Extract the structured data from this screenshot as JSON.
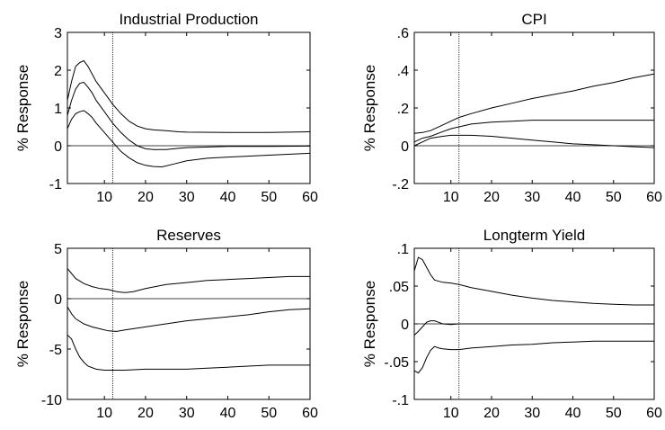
{
  "chart_data": [
    {
      "type": "line",
      "title": "Industrial Production",
      "ylabel": "% Response",
      "xlim": [
        1,
        60
      ],
      "ylim": [
        -1,
        3
      ],
      "xticks": [
        10,
        20,
        30,
        40,
        50,
        60
      ],
      "yticks": [
        -1,
        0,
        1,
        2,
        3
      ],
      "hline": 0,
      "vline": 12,
      "series": [
        {
          "points": [
            [
              1,
              1.2
            ],
            [
              2,
              1.7
            ],
            [
              3,
              2.1
            ],
            [
              4,
              2.2
            ],
            [
              5,
              2.25
            ],
            [
              6,
              2.1
            ],
            [
              7,
              1.9
            ],
            [
              8,
              1.7
            ],
            [
              10,
              1.4
            ],
            [
              12,
              1.1
            ],
            [
              14,
              0.85
            ],
            [
              16,
              0.65
            ],
            [
              18,
              0.52
            ],
            [
              20,
              0.45
            ],
            [
              22,
              0.42
            ],
            [
              25,
              0.4
            ],
            [
              28,
              0.37
            ],
            [
              30,
              0.36
            ],
            [
              40,
              0.35
            ],
            [
              50,
              0.35
            ],
            [
              60,
              0.37
            ]
          ]
        },
        {
          "points": [
            [
              1,
              0.8
            ],
            [
              2,
              1.2
            ],
            [
              3,
              1.5
            ],
            [
              4,
              1.65
            ],
            [
              5,
              1.68
            ],
            [
              6,
              1.55
            ],
            [
              7,
              1.4
            ],
            [
              8,
              1.2
            ],
            [
              10,
              0.9
            ],
            [
              12,
              0.6
            ],
            [
              14,
              0.35
            ],
            [
              16,
              0.15
            ],
            [
              18,
              0.0
            ],
            [
              20,
              -0.08
            ],
            [
              22,
              -0.1
            ],
            [
              25,
              -0.1
            ],
            [
              28,
              -0.07
            ],
            [
              30,
              -0.05
            ],
            [
              40,
              -0.02
            ],
            [
              50,
              -0.02
            ],
            [
              60,
              -0.01
            ]
          ]
        },
        {
          "points": [
            [
              1,
              0.45
            ],
            [
              2,
              0.7
            ],
            [
              3,
              0.85
            ],
            [
              4,
              0.9
            ],
            [
              5,
              0.93
            ],
            [
              6,
              0.85
            ],
            [
              7,
              0.75
            ],
            [
              8,
              0.6
            ],
            [
              10,
              0.35
            ],
            [
              12,
              0.1
            ],
            [
              14,
              -0.15
            ],
            [
              16,
              -0.32
            ],
            [
              18,
              -0.45
            ],
            [
              20,
              -0.52
            ],
            [
              22,
              -0.55
            ],
            [
              24,
              -0.56
            ],
            [
              27,
              -0.48
            ],
            [
              30,
              -0.4
            ],
            [
              35,
              -0.33
            ],
            [
              40,
              -0.3
            ],
            [
              50,
              -0.25
            ],
            [
              60,
              -0.2
            ]
          ]
        }
      ]
    },
    {
      "type": "line",
      "title": "CPI",
      "ylabel": "% Response",
      "xlim": [
        1,
        60
      ],
      "ylim": [
        -0.2,
        0.6
      ],
      "xticks": [
        10,
        20,
        30,
        40,
        50,
        60
      ],
      "yticks": [
        -0.2,
        0,
        0.2,
        0.4,
        0.6
      ],
      "hline": 0,
      "vline": 12,
      "series": [
        {
          "points": [
            [
              1,
              0.065
            ],
            [
              3,
              0.07
            ],
            [
              5,
              0.08
            ],
            [
              8,
              0.11
            ],
            [
              10,
              0.13
            ],
            [
              12,
              0.15
            ],
            [
              15,
              0.17
            ],
            [
              20,
              0.2
            ],
            [
              25,
              0.225
            ],
            [
              30,
              0.25
            ],
            [
              35,
              0.27
            ],
            [
              40,
              0.29
            ],
            [
              45,
              0.315
            ],
            [
              50,
              0.335
            ],
            [
              55,
              0.36
            ],
            [
              60,
              0.38
            ]
          ]
        },
        {
          "points": [
            [
              1,
              0.02
            ],
            [
              3,
              0.04
            ],
            [
              5,
              0.05
            ],
            [
              8,
              0.075
            ],
            [
              10,
              0.09
            ],
            [
              12,
              0.1
            ],
            [
              15,
              0.115
            ],
            [
              20,
              0.125
            ],
            [
              25,
              0.13
            ],
            [
              30,
              0.135
            ],
            [
              40,
              0.135
            ],
            [
              50,
              0.135
            ],
            [
              60,
              0.135
            ]
          ]
        },
        {
          "points": [
            [
              1,
              0.0
            ],
            [
              3,
              0.02
            ],
            [
              5,
              0.04
            ],
            [
              8,
              0.05
            ],
            [
              10,
              0.055
            ],
            [
              12,
              0.055
            ],
            [
              15,
              0.055
            ],
            [
              20,
              0.05
            ],
            [
              25,
              0.04
            ],
            [
              30,
              0.03
            ],
            [
              35,
              0.02
            ],
            [
              40,
              0.01
            ],
            [
              45,
              0.005
            ],
            [
              50,
              0.0
            ],
            [
              55,
              -0.005
            ],
            [
              60,
              -0.01
            ]
          ]
        }
      ]
    },
    {
      "type": "line",
      "title": "Reserves",
      "ylabel": "% Response",
      "xlim": [
        1,
        60
      ],
      "ylim": [
        -10,
        5
      ],
      "xticks": [
        10,
        20,
        30,
        40,
        50,
        60
      ],
      "yticks": [
        -10,
        -5,
        0,
        5
      ],
      "hline": 0,
      "vline": 12,
      "series": [
        {
          "points": [
            [
              1,
              3.0
            ],
            [
              2,
              2.5
            ],
            [
              3,
              2.0
            ],
            [
              5,
              1.5
            ],
            [
              7,
              1.2
            ],
            [
              9,
              1.0
            ],
            [
              11,
              0.9
            ],
            [
              13,
              0.7
            ],
            [
              15,
              0.6
            ],
            [
              17,
              0.7
            ],
            [
              20,
              1.0
            ],
            [
              25,
              1.4
            ],
            [
              30,
              1.6
            ],
            [
              35,
              1.8
            ],
            [
              40,
              1.9
            ],
            [
              45,
              2.0
            ],
            [
              50,
              2.1
            ],
            [
              55,
              2.2
            ],
            [
              60,
              2.2
            ]
          ]
        },
        {
          "points": [
            [
              1,
              -0.8
            ],
            [
              2,
              -1.5
            ],
            [
              3,
              -2.0
            ],
            [
              5,
              -2.5
            ],
            [
              7,
              -2.8
            ],
            [
              9,
              -3.0
            ],
            [
              11,
              -3.2
            ],
            [
              13,
              -3.25
            ],
            [
              15,
              -3.1
            ],
            [
              20,
              -2.8
            ],
            [
              25,
              -2.5
            ],
            [
              30,
              -2.2
            ],
            [
              35,
              -2.0
            ],
            [
              40,
              -1.8
            ],
            [
              45,
              -1.6
            ],
            [
              50,
              -1.3
            ],
            [
              55,
              -1.1
            ],
            [
              60,
              -1.0
            ]
          ]
        },
        {
          "points": [
            [
              1,
              -3.6
            ],
            [
              2,
              -4.0
            ],
            [
              3,
              -5.0
            ],
            [
              4,
              -5.8
            ],
            [
              5,
              -6.3
            ],
            [
              6,
              -6.7
            ],
            [
              8,
              -7.0
            ],
            [
              10,
              -7.1
            ],
            [
              12,
              -7.1
            ],
            [
              15,
              -7.1
            ],
            [
              20,
              -7.0
            ],
            [
              25,
              -7.0
            ],
            [
              30,
              -7.0
            ],
            [
              35,
              -6.9
            ],
            [
              40,
              -6.8
            ],
            [
              45,
              -6.7
            ],
            [
              50,
              -6.6
            ],
            [
              55,
              -6.6
            ],
            [
              60,
              -6.6
            ]
          ]
        }
      ]
    },
    {
      "type": "line",
      "title": "Longterm Yield",
      "ylabel": "% Response",
      "xlim": [
        1,
        60
      ],
      "ylim": [
        -0.1,
        0.1
      ],
      "xticks": [
        10,
        20,
        30,
        40,
        50,
        60
      ],
      "yticks": [
        -0.1,
        -0.05,
        0,
        0.05,
        0.1
      ],
      "hline": 0,
      "vline": 12,
      "series": [
        {
          "points": [
            [
              1,
              0.07
            ],
            [
              2,
              0.088
            ],
            [
              3,
              0.085
            ],
            [
              4,
              0.075
            ],
            [
              5,
              0.065
            ],
            [
              6,
              0.058
            ],
            [
              8,
              0.055
            ],
            [
              10,
              0.054
            ],
            [
              12,
              0.052
            ],
            [
              15,
              0.048
            ],
            [
              20,
              0.043
            ],
            [
              25,
              0.038
            ],
            [
              30,
              0.034
            ],
            [
              35,
              0.031
            ],
            [
              40,
              0.029
            ],
            [
              45,
              0.027
            ],
            [
              50,
              0.026
            ],
            [
              55,
              0.025
            ],
            [
              60,
              0.025
            ]
          ]
        },
        {
          "points": [
            [
              1,
              -0.015
            ],
            [
              2,
              -0.01
            ],
            [
              3,
              -0.004
            ],
            [
              4,
              0.002
            ],
            [
              5,
              0.004
            ],
            [
              6,
              0.004
            ],
            [
              7,
              0.002
            ],
            [
              8,
              0.0
            ],
            [
              10,
              -0.001
            ],
            [
              12,
              0.0
            ],
            [
              20,
              0.0
            ],
            [
              30,
              0.0
            ],
            [
              40,
              0.0
            ],
            [
              50,
              0.0
            ],
            [
              60,
              0.0
            ]
          ]
        },
        {
          "points": [
            [
              1,
              -0.062
            ],
            [
              2,
              -0.065
            ],
            [
              3,
              -0.058
            ],
            [
              4,
              -0.045
            ],
            [
              5,
              -0.035
            ],
            [
              6,
              -0.03
            ],
            [
              7,
              -0.032
            ],
            [
              8,
              -0.033
            ],
            [
              10,
              -0.034
            ],
            [
              12,
              -0.034
            ],
            [
              15,
              -0.032
            ],
            [
              20,
              -0.03
            ],
            [
              25,
              -0.028
            ],
            [
              30,
              -0.027
            ],
            [
              35,
              -0.025
            ],
            [
              40,
              -0.024
            ],
            [
              45,
              -0.023
            ],
            [
              50,
              -0.023
            ],
            [
              55,
              -0.023
            ],
            [
              60,
              -0.023
            ]
          ]
        }
      ]
    }
  ]
}
